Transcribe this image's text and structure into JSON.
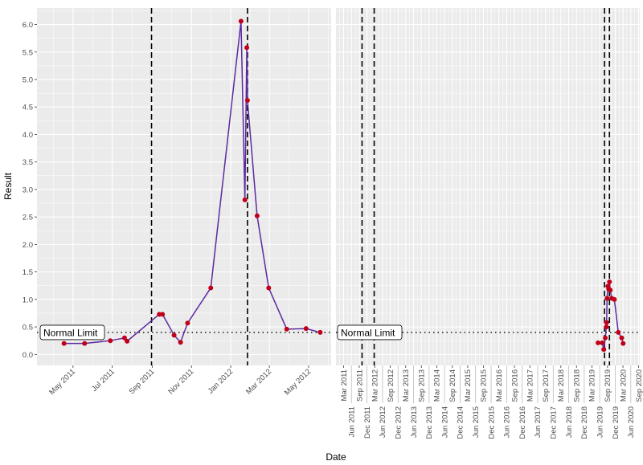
{
  "chart_data": [
    {
      "type": "line",
      "panel": "left",
      "xlabel": "Date",
      "ylabel": "Result",
      "xlim": [
        "2011-03-06",
        "2012-06-05"
      ],
      "ylim": [
        -0.2,
        6.3
      ],
      "y_ticks": [
        "0.0",
        "0.5",
        "1.0",
        "1.5",
        "2.0",
        "2.5",
        "3.0",
        "3.5",
        "4.0",
        "4.5",
        "5.0",
        "5.5",
        "6.0"
      ],
      "x_ticks": [
        {
          "date": "2011-05-01",
          "label": "May 2011"
        },
        {
          "date": "2011-07-01",
          "label": "Jul 2011"
        },
        {
          "date": "2011-09-01",
          "label": "Sep 2011"
        },
        {
          "date": "2011-11-01",
          "label": "Nov 2011"
        },
        {
          "date": "2012-01-01",
          "label": "Jan 2012"
        },
        {
          "date": "2012-03-01",
          "label": "Mar 2012"
        },
        {
          "date": "2012-05-01",
          "label": "May 2012"
        }
      ],
      "grid": true,
      "line_color": "#5b2a9e",
      "point_color": "#c0001a",
      "points": [
        {
          "x": "2011-04-17",
          "y": 0.2
        },
        {
          "x": "2011-05-19",
          "y": 0.2
        },
        {
          "x": "2011-06-28",
          "y": 0.25
        },
        {
          "x": "2011-07-20",
          "y": 0.3
        },
        {
          "x": "2011-07-24",
          "y": 0.24
        },
        {
          "x": "2011-09-12",
          "y": 0.73
        },
        {
          "x": "2011-09-17",
          "y": 0.73
        },
        {
          "x": "2011-10-05",
          "y": 0.35
        },
        {
          "x": "2011-10-15",
          "y": 0.22
        },
        {
          "x": "2011-10-26",
          "y": 0.57
        },
        {
          "x": "2011-12-01",
          "y": 1.21
        },
        {
          "x": "2012-01-17",
          "y": 6.06
        },
        {
          "x": "2012-01-23",
          "y": 2.81
        },
        {
          "x": "2012-01-26",
          "y": 5.58
        },
        {
          "x": "2012-01-27",
          "y": 4.62
        },
        {
          "x": "2012-02-11",
          "y": 2.52
        },
        {
          "x": "2012-02-29",
          "y": 1.21
        },
        {
          "x": "2012-03-28",
          "y": 0.46
        },
        {
          "x": "2012-04-27",
          "y": 0.47
        },
        {
          "x": "2012-05-19",
          "y": 0.4
        }
      ],
      "vlines": [
        "2011-08-31",
        "2012-01-27"
      ],
      "hline": {
        "y": 0.4,
        "label": "Normal Limit"
      }
    },
    {
      "type": "line",
      "panel": "right",
      "xlim": [
        "2010-12-01",
        "2020-09-15"
      ],
      "ylim": [
        -0.2,
        6.3
      ],
      "x_tick_every_months": 3,
      "x_tick_start": "2011-03-01",
      "x_tick_end": "2020-09-01",
      "grid": true,
      "line_color": "#5b2a9e",
      "point_color": "#c0001a",
      "points": [
        {
          "x": "2019-05-13",
          "y": 0.21
        },
        {
          "x": "2019-07-01",
          "y": 0.21
        },
        {
          "x": "2019-07-19",
          "y": 0.09
        },
        {
          "x": "2019-08-06",
          "y": 0.3
        },
        {
          "x": "2019-08-18",
          "y": 0.5
        },
        {
          "x": "2019-08-22",
          "y": 0.58
        },
        {
          "x": "2019-08-27",
          "y": 1.02
        },
        {
          "x": "2019-09-06",
          "y": 1.24
        },
        {
          "x": "2019-09-15",
          "y": 1.19
        },
        {
          "x": "2019-09-24",
          "y": 1.32
        },
        {
          "x": "2019-10-03",
          "y": 1.17
        },
        {
          "x": "2019-10-21",
          "y": 1.02
        },
        {
          "x": "2019-11-21",
          "y": 1.0
        },
        {
          "x": "2020-01-06",
          "y": 0.4
        },
        {
          "x": "2020-02-15",
          "y": 0.3
        },
        {
          "x": "2020-03-03",
          "y": 0.2
        }
      ],
      "vlines": [
        "2011-10-04",
        "2012-02-24",
        "2019-07-28",
        "2019-09-24"
      ],
      "hline": {
        "y": 0.4,
        "label": "Normal Limit"
      }
    }
  ]
}
